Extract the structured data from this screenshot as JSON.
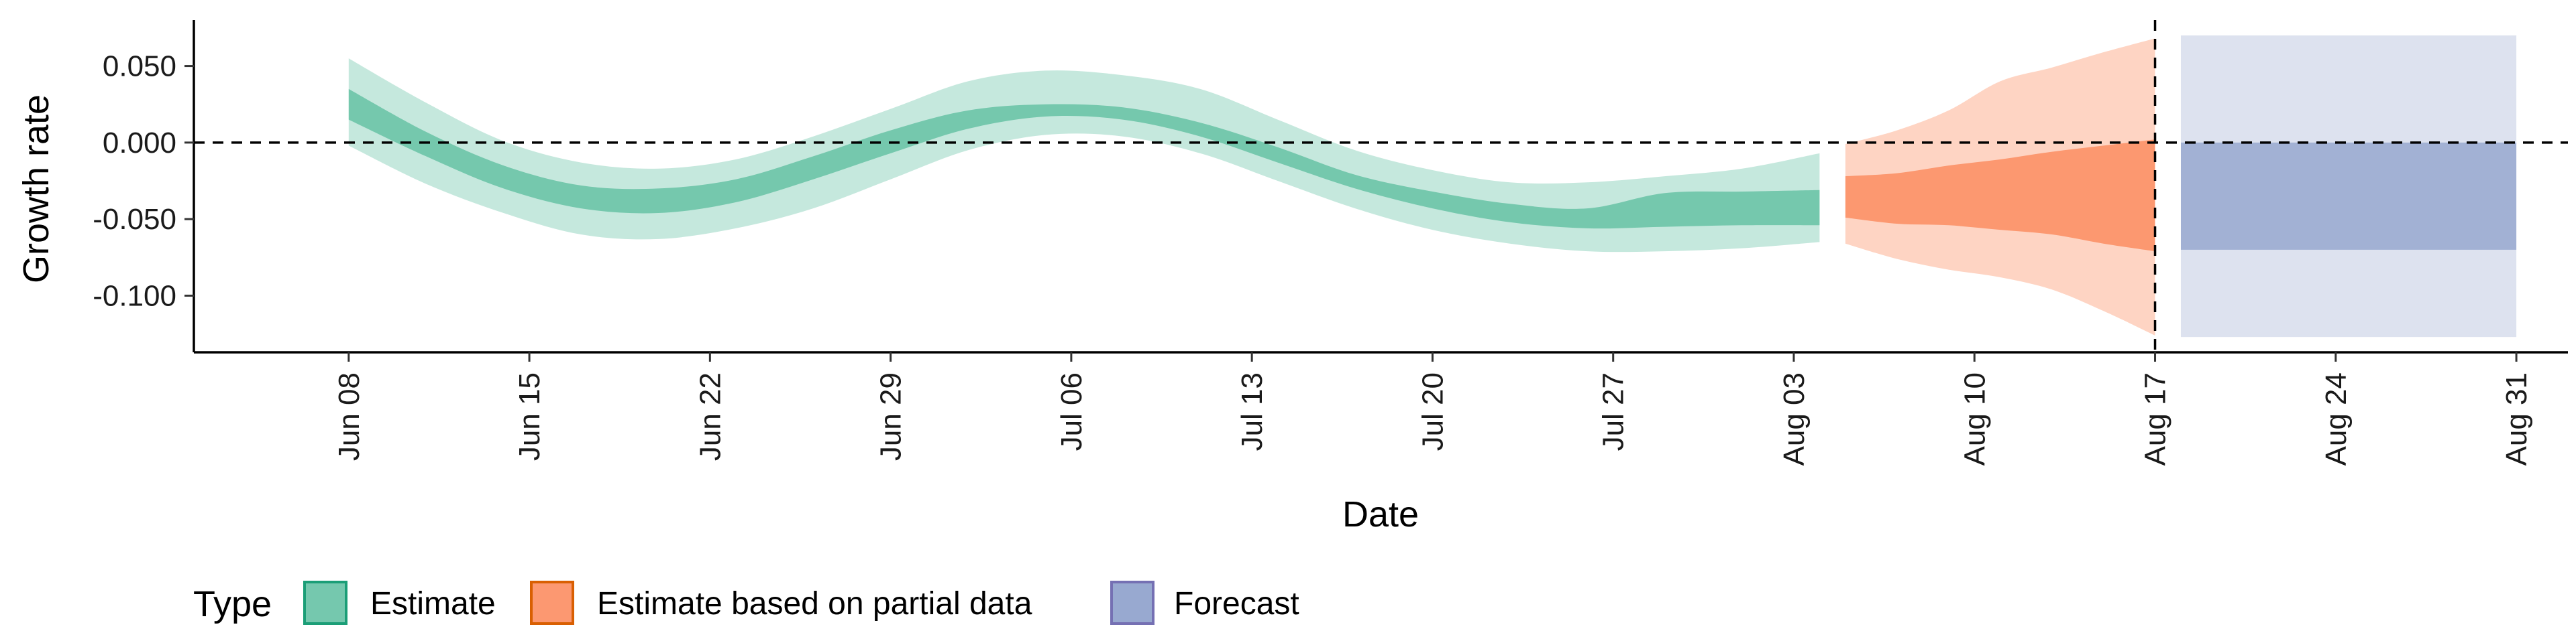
{
  "chart_data": {
    "type": "area",
    "xlabel": "Date",
    "ylabel": "Growth rate",
    "x_range": [
      "2020-06-02",
      "2020-09-02"
    ],
    "ylim": [
      -0.137,
      0.08
    ],
    "y_ticks": [
      0.05,
      0.0,
      -0.05,
      -0.1
    ],
    "y_tick_labels": [
      "0.050",
      "0.000",
      "-0.050",
      "-0.100"
    ],
    "x_ticks": [
      "2020-06-08",
      "2020-06-15",
      "2020-06-22",
      "2020-06-29",
      "2020-07-06",
      "2020-07-13",
      "2020-07-20",
      "2020-07-27",
      "2020-08-03",
      "2020-08-10",
      "2020-08-17",
      "2020-08-24",
      "2020-08-31"
    ],
    "x_tick_labels": [
      "Jun 08",
      "Jun 15",
      "Jun 22",
      "Jun 29",
      "Jul 06",
      "Jul 13",
      "Jul 20",
      "Jul 27",
      "Aug 03",
      "Aug 10",
      "Aug 17",
      "Aug 24",
      "Aug 31"
    ],
    "reference_lines": {
      "horizontal_y": 0.0,
      "vertical_x": "2020-08-17"
    },
    "grid": false,
    "legend": {
      "title": "Type",
      "placement": "bottom-left",
      "entries": [
        {
          "label": "Estimate",
          "fill": "#66c2a5",
          "border": "#1b9e77"
        },
        {
          "label": "Estimate based on partial data",
          "fill": "#fc8d62",
          "border": "#d95f02"
        },
        {
          "label": "Forecast",
          "fill": "#8da0cb",
          "border": "#7570b3"
        }
      ]
    },
    "series": [
      {
        "name": "Estimate",
        "color": "#1b9e77",
        "x": [
          "2020-06-08",
          "2020-06-11",
          "2020-06-14",
          "2020-06-17",
          "2020-06-20",
          "2020-06-23",
          "2020-06-26",
          "2020-06-29",
          "2020-07-02",
          "2020-07-05",
          "2020-07-08",
          "2020-07-11",
          "2020-07-14",
          "2020-07-17",
          "2020-07-20",
          "2020-07-23",
          "2020-07-26",
          "2020-07-29",
          "2020-08-01",
          "2020-08-04"
        ],
        "lower_90": [
          -0.002,
          -0.027,
          -0.046,
          -0.06,
          -0.063,
          -0.056,
          -0.043,
          -0.024,
          -0.005,
          0.005,
          0.004,
          -0.007,
          -0.025,
          -0.043,
          -0.057,
          -0.066,
          -0.071,
          -0.071,
          -0.069,
          -0.065
        ],
        "lower_50": [
          0.015,
          -0.009,
          -0.03,
          -0.043,
          -0.046,
          -0.039,
          -0.024,
          -0.007,
          0.009,
          0.017,
          0.015,
          0.004,
          -0.013,
          -0.03,
          -0.043,
          -0.052,
          -0.056,
          -0.055,
          -0.054,
          -0.054
        ],
        "upper_50": [
          0.035,
          0.007,
          -0.015,
          -0.028,
          -0.03,
          -0.024,
          -0.009,
          0.008,
          0.021,
          0.025,
          0.023,
          0.013,
          -0.003,
          -0.021,
          -0.032,
          -0.04,
          -0.043,
          -0.033,
          -0.032,
          -0.031
        ],
        "upper_90": [
          0.055,
          0.026,
          0.001,
          -0.013,
          -0.017,
          -0.011,
          0.004,
          0.022,
          0.04,
          0.047,
          0.044,
          0.035,
          0.015,
          -0.005,
          -0.018,
          -0.026,
          -0.026,
          -0.022,
          -0.017,
          -0.007
        ]
      },
      {
        "name": "Estimate based on partial data",
        "color": "#d95f02",
        "x": [
          "2020-08-05",
          "2020-08-07",
          "2020-08-09",
          "2020-08-11",
          "2020-08-13",
          "2020-08-15",
          "2020-08-17"
        ],
        "lower_90": [
          -0.066,
          -0.076,
          -0.083,
          -0.088,
          -0.096,
          -0.11,
          -0.126
        ],
        "lower_50": [
          -0.049,
          -0.053,
          -0.054,
          -0.057,
          -0.06,
          -0.066,
          -0.071
        ],
        "upper_50": [
          -0.022,
          -0.02,
          -0.015,
          -0.011,
          -0.006,
          -0.002,
          0.002
        ],
        "upper_90": [
          -0.001,
          0.008,
          0.021,
          0.04,
          0.049,
          0.059,
          0.068
        ]
      },
      {
        "name": "Forecast",
        "color": "#7570b3",
        "x": [
          "2020-08-18",
          "2020-08-31"
        ],
        "lower_90": [
          -0.127,
          -0.127
        ],
        "lower_50": [
          -0.07,
          -0.07
        ],
        "upper_50": [
          0.0,
          0.0
        ],
        "upper_90": [
          0.07,
          0.07
        ]
      }
    ]
  }
}
